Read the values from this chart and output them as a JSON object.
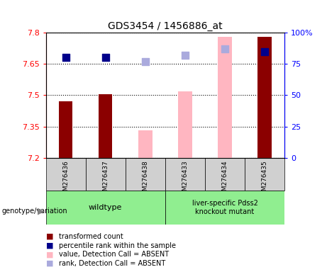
{
  "title": "GDS3454 / 1456886_at",
  "samples": [
    "GSM276436",
    "GSM276437",
    "GSM276438",
    "GSM276433",
    "GSM276434",
    "GSM276435"
  ],
  "y_min": 7.2,
  "y_max": 7.8,
  "y_ticks": [
    7.2,
    7.35,
    7.5,
    7.65,
    7.8
  ],
  "right_y_ticks": [
    0,
    25,
    50,
    75,
    100
  ],
  "right_y_labels": [
    "0",
    "25",
    "50",
    "75",
    "100%"
  ],
  "bar_bottom": 7.2,
  "transformed_count": {
    "GSM276436": 7.47,
    "GSM276437": 7.505,
    "GSM276435": 7.78
  },
  "absent_value": {
    "GSM276438": 7.33,
    "GSM276433": 7.52,
    "GSM276434": 7.78
  },
  "percentile_rank": {
    "GSM276436": 80,
    "GSM276437": 80,
    "GSM276435": 85
  },
  "absent_rank": {
    "GSM276438": 77,
    "GSM276433": 82,
    "GSM276434": 87
  },
  "dark_red": "#8B0000",
  "pink": "#FFB6C1",
  "blue": "#00008B",
  "light_blue": "#AAAADD",
  "green": "#90EE90",
  "gray_bg": "#D0D0D0",
  "dot_size": 55,
  "bar_width": 0.35
}
